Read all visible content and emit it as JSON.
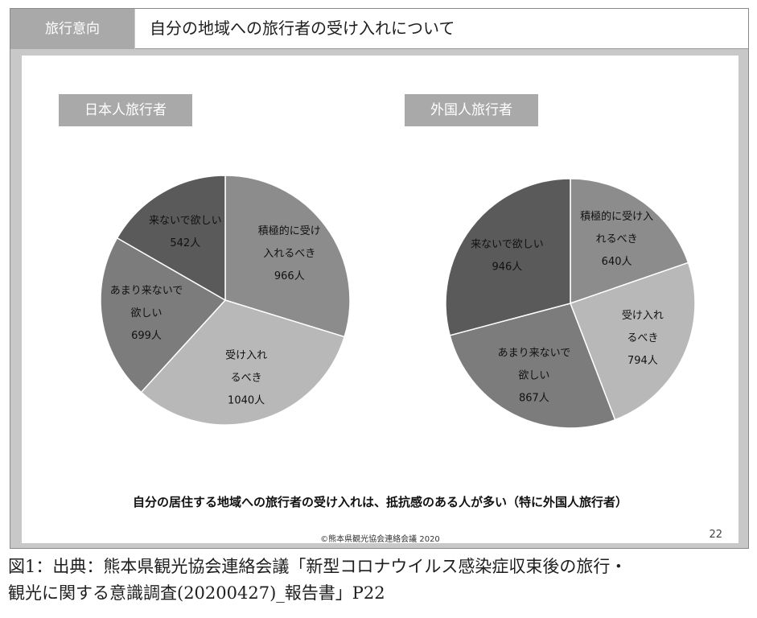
{
  "slide": {
    "tag": "旅行意向",
    "title": "自分の地域への旅行者の受け入れについて",
    "conclusion": "自分の居住する地域への旅行者の受け入れは、抵抗感のある人が多い（特に外国人旅行者）",
    "copyright": "©熊本県観光協会連絡会議 2020",
    "page_number": "22"
  },
  "caption": {
    "line1": "図1：出典：熊本県観光協会連絡会議「新型コロナウイルス感染症収束後の旅行・",
    "line2": "観光に関する意識調査(20200427)_報告書」P22"
  },
  "chart_data": [
    {
      "type": "pie",
      "title": "日本人旅行者",
      "unit": "人",
      "slices": [
        {
          "label": "積極的に受け入れるべき",
          "label_lines": [
            "積極的に受け",
            "入れるべき"
          ],
          "value": 966,
          "value_text": "966人",
          "color": "#8c8c8c"
        },
        {
          "label": "受け入れるべき",
          "label_lines": [
            "受け入れ",
            "るべき"
          ],
          "value": 1040,
          "value_text": "1040人",
          "color": "#b8b8b8"
        },
        {
          "label": "あまり来ないで欲しい",
          "label_lines": [
            "あまり来ないで",
            "欲しい"
          ],
          "value": 699,
          "value_text": "699人",
          "color": "#7c7c7c"
        },
        {
          "label": "来ないで欲しい",
          "label_lines": [
            "来ないで欲しい"
          ],
          "value": 542,
          "value_text": "542人",
          "color": "#5a5a5a"
        }
      ]
    },
    {
      "type": "pie",
      "title": "外国人旅行者",
      "unit": "人",
      "slices": [
        {
          "label": "積極的に受け入れるべき",
          "label_lines": [
            "積極的に受け入",
            "れるべき"
          ],
          "value": 640,
          "value_text": "640人",
          "color": "#8c8c8c"
        },
        {
          "label": "受け入れるべき",
          "label_lines": [
            "受け入れ",
            "るべき"
          ],
          "value": 794,
          "value_text": "794人",
          "color": "#b8b8b8"
        },
        {
          "label": "あまり来ないで欲しい",
          "label_lines": [
            "あまり来ないで",
            "欲しい"
          ],
          "value": 867,
          "value_text": "867人",
          "color": "#7c7c7c"
        },
        {
          "label": "来ないで欲しい",
          "label_lines": [
            "来ないで欲しい"
          ],
          "value": 946,
          "value_text": "946人",
          "color": "#5a5a5a"
        }
      ]
    }
  ]
}
